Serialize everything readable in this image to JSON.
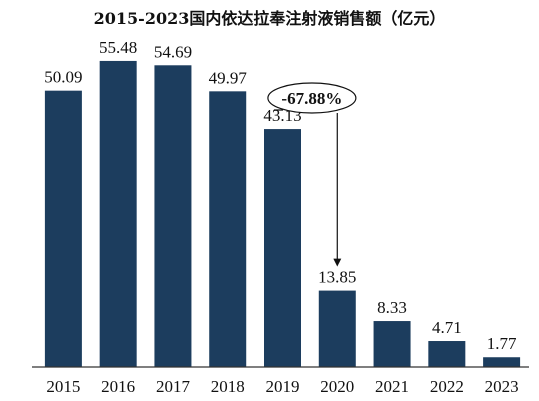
{
  "colors": {
    "bar": "#1c3d5e",
    "axis": "#333333",
    "text": "#111111"
  },
  "chart_data": {
    "type": "bar",
    "title": "2015-2023国内依达拉奉注射液销售额（亿元）",
    "xlabel": "",
    "ylabel": "",
    "ylim": [
      0,
      60
    ],
    "grid": false,
    "categories": [
      "2015",
      "2016",
      "2017",
      "2018",
      "2019",
      "2020",
      "2021",
      "2022",
      "2023"
    ],
    "values": [
      50.09,
      55.48,
      54.69,
      49.97,
      43.13,
      13.85,
      8.33,
      4.71,
      1.77
    ],
    "data_labels": [
      "50.09",
      "55.48",
      "54.69",
      "49.97",
      "43.13",
      "13.85",
      "8.33",
      "4.71",
      "1.77"
    ],
    "annotation": {
      "text": "-67.88%",
      "from_category": "2019",
      "to_category": "2020"
    }
  }
}
